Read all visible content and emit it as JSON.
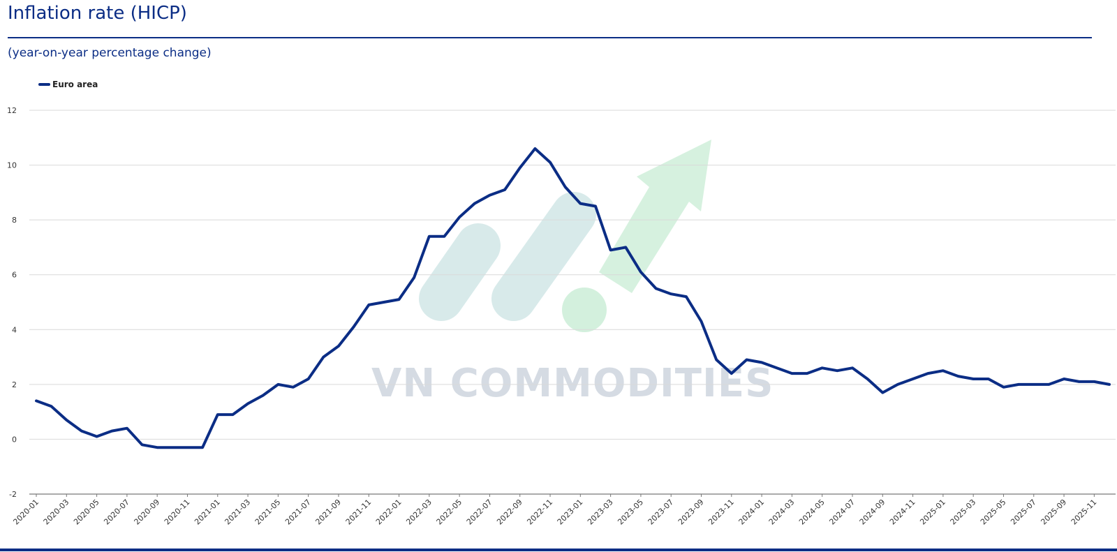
{
  "header": {
    "title": "Inflation rate (HICP)",
    "subtitle": "(year-on-year percentage change)"
  },
  "watermark": {
    "text": "VN COMMODITIES"
  },
  "colors": {
    "line": "#0b2d85",
    "grid": "#d9d9d9",
    "watermark_green": "#c8ecd4",
    "watermark_teal": "#cfe6e6"
  },
  "chart_data": {
    "type": "line",
    "title": "Inflation rate (HICP)",
    "subtitle": "(year-on-year percentage change)",
    "legend": {
      "entries": [
        "Euro area"
      ],
      "position": "top-left"
    },
    "grid": true,
    "ylim": [
      -2,
      12
    ],
    "yticks": [
      -2,
      0,
      2,
      4,
      6,
      8,
      10,
      12
    ],
    "xticks": [
      "2020-01",
      "2020-03",
      "2020-05",
      "2020-07",
      "2020-09",
      "2020-11",
      "2021-01",
      "2021-03",
      "2021-05",
      "2021-07",
      "2021-09",
      "2021-11",
      "2022-01",
      "2022-03",
      "2022-05",
      "2022-07",
      "2022-09",
      "2022-11",
      "2023-01",
      "2023-03",
      "2023-05",
      "2023-07",
      "2023-09",
      "2023-11",
      "2024-01",
      "2024-03",
      "2024-05",
      "2024-07",
      "2024-09",
      "2024-11",
      "2025-01",
      "2025-03",
      "2025-05",
      "2025-07",
      "2025-09",
      "2025-11"
    ],
    "x": [
      "2020-01",
      "2020-02",
      "2020-03",
      "2020-04",
      "2020-05",
      "2020-06",
      "2020-07",
      "2020-08",
      "2020-09",
      "2020-10",
      "2020-11",
      "2020-12",
      "2021-01",
      "2021-02",
      "2021-03",
      "2021-04",
      "2021-05",
      "2021-06",
      "2021-07",
      "2021-08",
      "2021-09",
      "2021-10",
      "2021-11",
      "2021-12",
      "2022-01",
      "2022-02",
      "2022-03",
      "2022-04",
      "2022-05",
      "2022-06",
      "2022-07",
      "2022-08",
      "2022-09",
      "2022-10",
      "2022-11",
      "2022-12",
      "2023-01",
      "2023-02",
      "2023-03",
      "2023-04",
      "2023-05",
      "2023-06",
      "2023-07",
      "2023-08",
      "2023-09",
      "2023-10",
      "2023-11",
      "2023-12",
      "2024-01",
      "2024-02",
      "2024-03",
      "2024-04",
      "2024-05",
      "2024-06",
      "2024-07",
      "2024-08",
      "2024-09",
      "2024-10",
      "2024-11",
      "2024-12",
      "2025-01",
      "2025-02",
      "2025-03",
      "2025-04",
      "2025-05",
      "2025-06",
      "2025-07",
      "2025-08",
      "2025-09",
      "2025-10",
      "2025-11",
      "2025-12"
    ],
    "series": [
      {
        "name": "Euro area",
        "values": [
          1.4,
          1.2,
          0.7,
          0.3,
          0.1,
          0.3,
          0.4,
          -0.2,
          -0.3,
          -0.3,
          -0.3,
          -0.3,
          0.9,
          0.9,
          1.3,
          1.6,
          2.0,
          1.9,
          2.2,
          3.0,
          3.4,
          4.1,
          4.9,
          5.0,
          5.1,
          5.9,
          7.4,
          7.4,
          8.1,
          8.6,
          8.9,
          9.1,
          9.9,
          10.6,
          10.1,
          9.2,
          8.6,
          8.5,
          6.9,
          7.0,
          6.1,
          5.5,
          5.3,
          5.2,
          4.3,
          2.9,
          2.4,
          2.9,
          2.8,
          2.6,
          2.4,
          2.4,
          2.6,
          2.5,
          2.6,
          2.2,
          1.7,
          2.0,
          2.2,
          2.4,
          2.5,
          2.3,
          2.2,
          2.2,
          1.9,
          2.0,
          2.0,
          2.0,
          2.2,
          2.1,
          2.1,
          2.0
        ]
      }
    ]
  }
}
